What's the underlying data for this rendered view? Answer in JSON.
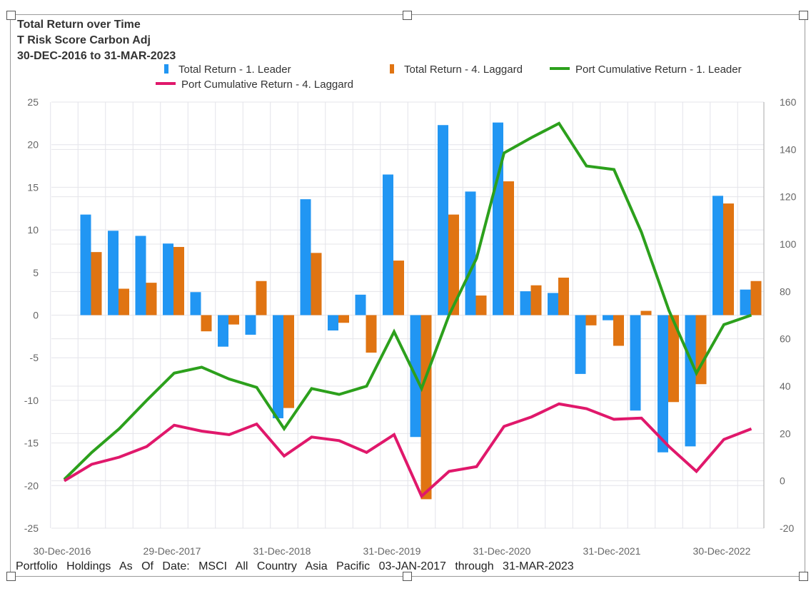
{
  "title_lines": [
    "Total Return over Time",
    "T Risk Score Carbon Adj",
    "30-DEC-2016 to 31-MAR-2023"
  ],
  "footer": "Portfolio Holdings As Of Date: MSCI All Country Asia Pacific 03-JAN-2017 through 31-MAR-2023",
  "colors": {
    "leader_bar": "#2196F3",
    "laggard_bar": "#E07412",
    "leader_line": "#2CA01C",
    "laggard_line": "#E0186B"
  },
  "chart_data": {
    "type": "bar+line",
    "title": "Total Return over Time",
    "legend_position": "top",
    "grid": true,
    "x_tick_labels": [
      "30-Dec-2016",
      "29-Dec-2017",
      "31-Dec-2018",
      "31-Dec-2019",
      "31-Dec-2020",
      "31-Dec-2021",
      "30-Dec-2022"
    ],
    "y_left": {
      "range": [
        -25,
        25
      ],
      "ticks": [
        25,
        20,
        15,
        10,
        5,
        0,
        -5,
        -10,
        -15,
        -20,
        -25
      ]
    },
    "y_right": {
      "range": [
        -20,
        160
      ],
      "ticks": [
        160,
        140,
        120,
        100,
        80,
        60,
        40,
        20,
        0,
        -20
      ]
    },
    "bar_series": [
      {
        "name": "Total Return - 1. Leader",
        "axis": "left",
        "values": [
          11.8,
          9.9,
          9.3,
          8.4,
          2.7,
          -3.7,
          -2.3,
          -12.1,
          13.6,
          -1.8,
          2.4,
          16.5,
          -14.3,
          22.3,
          14.5,
          22.6,
          2.8,
          2.6,
          -6.9,
          -0.6,
          -11.2,
          -16.1,
          -15.4,
          14.0,
          3.0
        ]
      },
      {
        "name": "Total Return - 4. Laggard",
        "axis": "left",
        "values": [
          7.4,
          3.1,
          3.8,
          8.0,
          -1.9,
          -1.1,
          4.0,
          -10.9,
          7.3,
          -0.9,
          -4.4,
          6.4,
          -21.6,
          11.8,
          2.3,
          15.7,
          3.5,
          4.4,
          -1.2,
          -3.6,
          0.5,
          -10.2,
          -8.1,
          13.1,
          4.0
        ]
      }
    ],
    "line_series": [
      {
        "name": "Port Cumulative Return - 1. Leader",
        "axis": "right",
        "values": [
          0.6,
          12,
          22,
          34,
          45.5,
          48,
          43,
          39.5,
          22,
          39,
          36.5,
          40,
          63,
          39,
          70,
          94,
          138.5,
          145,
          151,
          133,
          131.5,
          105,
          72,
          45.5,
          66,
          70
        ]
      },
      {
        "name": "Port Cumulative Return - 4. Laggard",
        "axis": "right",
        "values": [
          0,
          7,
          10,
          14.5,
          23.5,
          21,
          19.5,
          24,
          10.5,
          18.5,
          17,
          12,
          19.5,
          -6.5,
          4,
          6,
          23,
          27,
          32.5,
          30.5,
          26,
          26.5,
          14.5,
          4,
          17.5,
          22
        ]
      }
    ]
  }
}
